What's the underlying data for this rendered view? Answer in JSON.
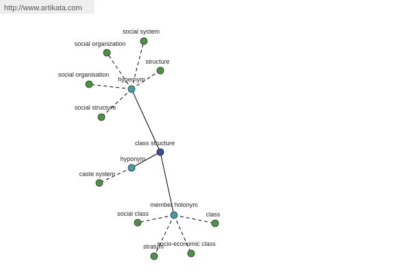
{
  "url": "http://www.artikata.com",
  "nodes": [
    {
      "label": "class structure"
    },
    {
      "label": "hypernym"
    },
    {
      "label": "social system"
    },
    {
      "label": "social organization"
    },
    {
      "label": "structure"
    },
    {
      "label": "social organisation"
    },
    {
      "label": "social structure"
    },
    {
      "label": "hyponym"
    },
    {
      "label": "caste system"
    },
    {
      "label": "member holonym"
    },
    {
      "label": "social class"
    },
    {
      "label": "class"
    },
    {
      "label": "stratum"
    },
    {
      "label": "socio-economic class"
    }
  ]
}
